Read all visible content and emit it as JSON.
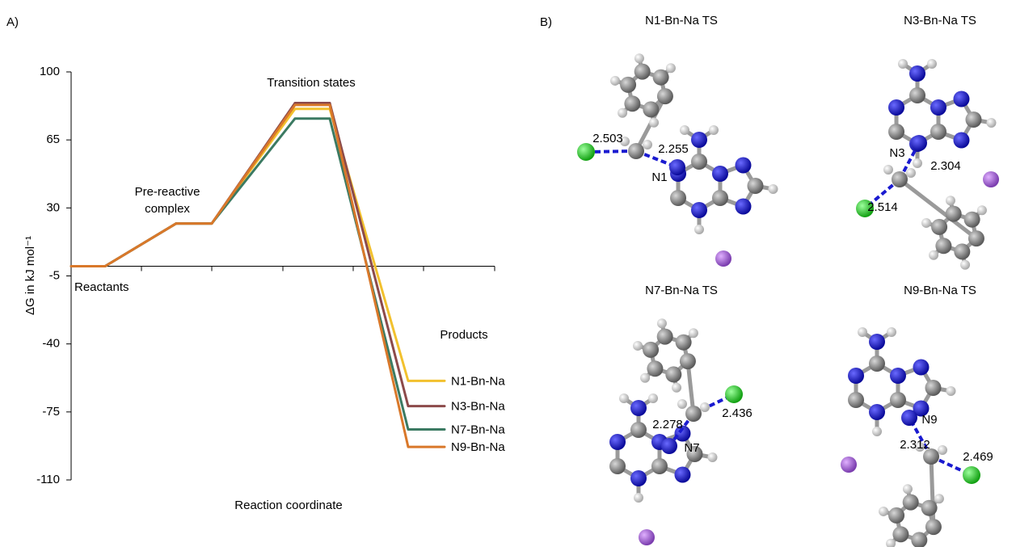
{
  "panel_labels": [
    "A)",
    "B)"
  ],
  "chart_data": {
    "type": "energy-profile",
    "y_label": "ΔG in kJ mol⁻¹",
    "x_label": "Reaction coordinate",
    "categories": [
      "Reactants",
      "Pre-reactive complex",
      "Transition states",
      "Products"
    ],
    "ylim": [
      -110,
      100
    ],
    "yticks": [
      100,
      65,
      30,
      -5,
      -40,
      -75,
      -110
    ],
    "series": [
      {
        "name": "N1-Bn-Na",
        "color": "#f2c12e",
        "values": [
          0,
          22,
          81,
          -59
        ]
      },
      {
        "name": "N3-Bn-Na",
        "color": "#8c4a4a",
        "values": [
          0,
          22,
          84,
          -72
        ]
      },
      {
        "name": "N7-Bn-Na",
        "color": "#3b7a62",
        "values": [
          0,
          22,
          76,
          -84
        ]
      },
      {
        "name": "N9-Bn-Na",
        "color": "#d9782a",
        "values": [
          0,
          22,
          83,
          -93
        ]
      }
    ]
  },
  "structures": [
    {
      "title": "N1-Bn-Na TS",
      "atom_label": "N1",
      "distances": [
        2.503,
        2.255
      ]
    },
    {
      "title": "N3-Bn-Na TS",
      "atom_label": "N3",
      "distances": [
        2.304,
        2.514
      ]
    },
    {
      "title": "N7-Bn-Na TS",
      "atom_label": "N7",
      "distances": [
        2.278,
        2.436
      ]
    },
    {
      "title": "N9-Bn-Na TS",
      "atom_label": "N9",
      "distances": [
        2.312,
        2.469
      ]
    }
  ]
}
